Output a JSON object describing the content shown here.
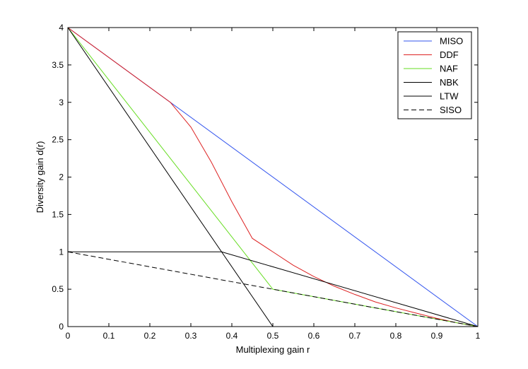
{
  "chart_data": {
    "type": "line",
    "xlabel": "Multiplexing gain r",
    "ylabel": "Diversity gain d(r)",
    "xlim": [
      0,
      1
    ],
    "ylim": [
      0,
      4
    ],
    "grid": false,
    "legend_position": "top-right",
    "xticks": [
      "0",
      "0.1",
      "0.2",
      "0.3",
      "0.4",
      "0.5",
      "0.6",
      "0.7",
      "0.8",
      "0.9",
      "1"
    ],
    "yticks": [
      "0",
      "0.5",
      "1",
      "1.5",
      "2",
      "2.5",
      "3",
      "3.5",
      "4"
    ],
    "series": [
      {
        "name": "MISO",
        "color": "#3355ee",
        "dash": false,
        "points": [
          [
            0,
            4
          ],
          [
            1,
            0
          ]
        ]
      },
      {
        "name": "DDF",
        "color": "#dd2222",
        "dash": false,
        "points": [
          [
            0,
            4
          ],
          [
            0.25,
            3
          ],
          [
            0.3,
            2.67
          ],
          [
            0.35,
            2.2
          ],
          [
            0.4,
            1.67
          ],
          [
            0.45,
            1.18
          ],
          [
            0.5,
            1
          ],
          [
            0.55,
            0.82
          ],
          [
            0.6,
            0.67
          ],
          [
            0.65,
            0.54
          ],
          [
            0.7,
            0.43
          ],
          [
            0.75,
            0.33
          ],
          [
            0.8,
            0.25
          ],
          [
            0.85,
            0.18
          ],
          [
            0.9,
            0.11
          ],
          [
            0.95,
            0.05
          ],
          [
            1,
            0
          ]
        ]
      },
      {
        "name": "NAF",
        "color": "#66dd22",
        "dash": false,
        "points": [
          [
            0,
            4
          ],
          [
            0.5,
            0.5
          ],
          [
            1,
            0
          ]
        ]
      },
      {
        "name": "NBK",
        "color": "#000000",
        "dash": false,
        "points": [
          [
            0,
            1
          ],
          [
            0.375,
            1
          ],
          [
            1,
            0
          ]
        ]
      },
      {
        "name": "LTW",
        "color": "#000000",
        "dash": false,
        "points": [
          [
            0,
            4
          ],
          [
            0.5,
            0
          ]
        ]
      },
      {
        "name": "SISO",
        "color": "#000000",
        "dash": true,
        "points": [
          [
            0,
            1
          ],
          [
            1,
            0
          ]
        ]
      }
    ]
  }
}
